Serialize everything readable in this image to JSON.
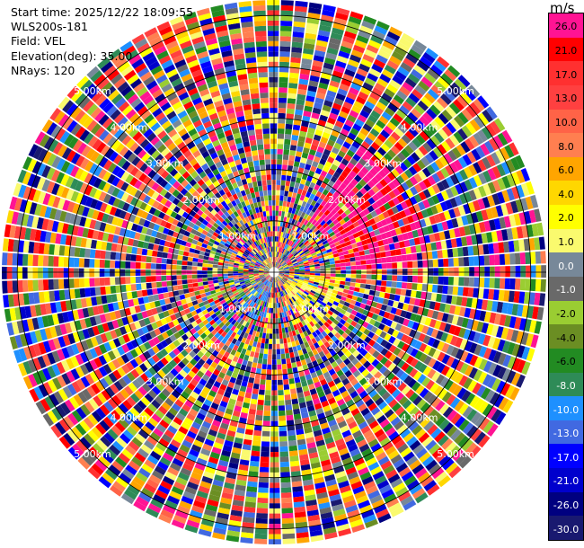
{
  "info": {
    "start_time": "Start time: 2025/12/22 18:09:55",
    "instrument": "WLS200s-181",
    "field": "Field: VEL",
    "elevation": "Elevation(deg): 35.00",
    "nrays": "NRays: 120"
  },
  "colorbar": {
    "title": "m/s",
    "ticks": [
      "26.0",
      "21.0",
      "17.0",
      "13.0",
      "10.0",
      "8.0",
      "6.0",
      "4.0",
      "2.0",
      "1.0",
      "0.0",
      "-1.0",
      "-2.0",
      "-4.0",
      "-6.0",
      "-8.0",
      "-10.0",
      "-13.0",
      "-17.0",
      "-21.0",
      "-26.0",
      "-30.0"
    ],
    "colors": [
      "#ff1493",
      "#ff0000",
      "#ff3030",
      "#ff4040",
      "#ff6347",
      "#ff7f50",
      "#ffa500",
      "#ffd700",
      "#ffff00",
      "#fafa6e",
      "#778899",
      "#696969",
      "#9acd32",
      "#6b8e23",
      "#228b22",
      "#2e8b57",
      "#1e90ff",
      "#4169e1",
      "#0000ff",
      "#0000cd",
      "#000080",
      "#191970"
    ]
  },
  "chart_data": {
    "type": "polar-ppi",
    "field": "VEL",
    "units": "m/s",
    "nrays": 120,
    "elevation_deg": 35.0,
    "range_rings_km": [
      "1.00km",
      "2.00km",
      "3.00km",
      "4.00km",
      "5.00km"
    ],
    "max_range_km": 5.3,
    "color_scale_min": -30.0,
    "color_scale_max": 26.0,
    "gate_spacing_km": 0.1,
    "notable_features": "Predominantly noisy random velocities; coherent positive (pink/red) patch in north-east sector between 1 and 3 km; coherent yellow/orange patch south-east near 1 km; blue patch near south-west close to center."
  }
}
